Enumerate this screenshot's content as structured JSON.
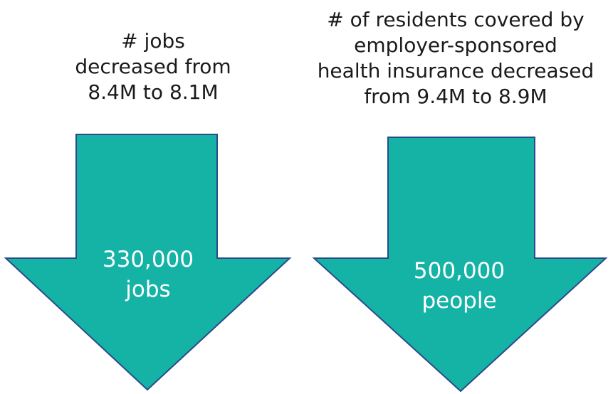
{
  "colors": {
    "arrow_fill": "#14b3a6",
    "arrow_stroke": "#2b4a8c",
    "label_text": "#ffffff",
    "caption_text": "#1a1a1a"
  },
  "jobs": {
    "caption_lines": [
      "# jobs",
      "decreased from",
      "8.4M to 8.1M"
    ],
    "arrow_value": "330,000",
    "arrow_unit": "jobs"
  },
  "insurance": {
    "caption_lines": [
      "# of residents covered by",
      "employer-sponsored",
      "health insurance decreased",
      "from 9.4M to 8.9M"
    ],
    "arrow_value": "500,000",
    "arrow_unit": "people"
  }
}
